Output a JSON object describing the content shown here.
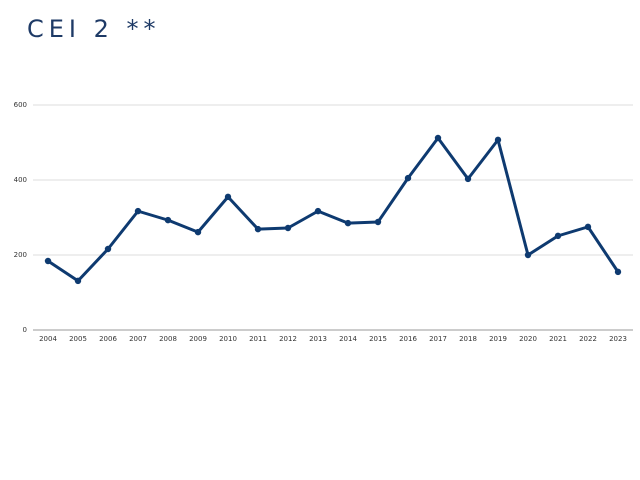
{
  "chart_data": {
    "type": "line",
    "title": "CEI 2 **",
    "categories": [
      "2004",
      "2005",
      "2006",
      "2007",
      "2008",
      "2009",
      "2010",
      "2011",
      "2012",
      "2013",
      "2014",
      "2015",
      "2016",
      "2017",
      "2018",
      "2019",
      "2020",
      "2021",
      "2022",
      "2023"
    ],
    "values": [
      184,
      131,
      216,
      317,
      293,
      261,
      355,
      269,
      272,
      317,
      285,
      288,
      405,
      512,
      403,
      507,
      200,
      251,
      275,
      155
    ],
    "color": "#0e3a70",
    "ylim": [
      0,
      600
    ],
    "yticks": [
      0,
      200,
      400,
      600
    ],
    "grid": true
  }
}
